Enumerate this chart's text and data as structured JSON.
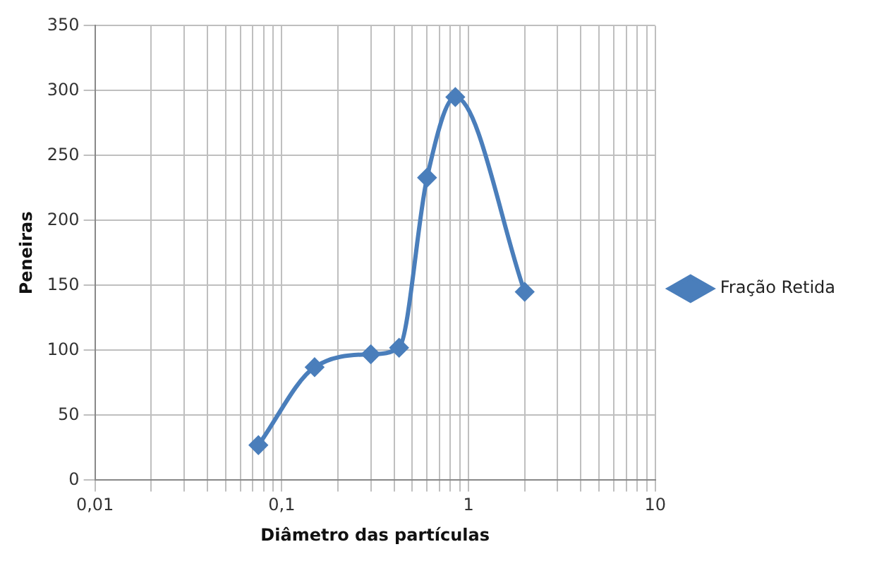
{
  "chart_data": {
    "type": "line",
    "xlabel": "Diâmetro das partículas",
    "ylabel": "Peneiras",
    "log": "x",
    "grid": true,
    "legend": "right",
    "marker": "diamond",
    "line_style": "solid",
    "x": [
      0.075,
      0.15,
      0.3,
      0.425,
      0.6,
      0.85,
      2
    ],
    "series": [
      {
        "name": "Fração Retida",
        "color": "#4a7ebb",
        "values": [
          27,
          87,
          97,
          102,
          233,
          295,
          145
        ]
      }
    ],
    "xlim": [
      0.01,
      10
    ],
    "xticks": [
      {
        "value": 0.01,
        "label": "0,01"
      },
      {
        "value": 0.02,
        "label": null
      },
      {
        "value": 0.03,
        "label": null
      },
      {
        "value": 0.04,
        "label": null
      },
      {
        "value": 0.05,
        "label": null
      },
      {
        "value": 0.06,
        "label": null
      },
      {
        "value": 0.07,
        "label": null
      },
      {
        "value": 0.08,
        "label": null
      },
      {
        "value": 0.09,
        "label": null
      },
      {
        "value": 0.1,
        "label": "0,1"
      },
      {
        "value": 0.2,
        "label": null
      },
      {
        "value": 0.3,
        "label": null
      },
      {
        "value": 0.4,
        "label": null
      },
      {
        "value": 0.5,
        "label": null
      },
      {
        "value": 0.6,
        "label": null
      },
      {
        "value": 0.7,
        "label": null
      },
      {
        "value": 0.8,
        "label": null
      },
      {
        "value": 0.9,
        "label": null
      },
      1,
      {
        "value": 2,
        "label": null
      },
      {
        "value": 3,
        "label": null
      },
      {
        "value": 4,
        "label": null
      },
      {
        "value": 5,
        "label": null
      },
      {
        "value": 6,
        "label": null
      },
      {
        "value": 7,
        "label": null
      },
      {
        "value": 8,
        "label": null
      },
      {
        "value": 9,
        "label": null
      },
      10
    ],
    "ylim": [
      0,
      350
    ],
    "yticks": [
      0,
      50,
      100,
      150,
      200,
      250,
      300,
      350
    ]
  }
}
